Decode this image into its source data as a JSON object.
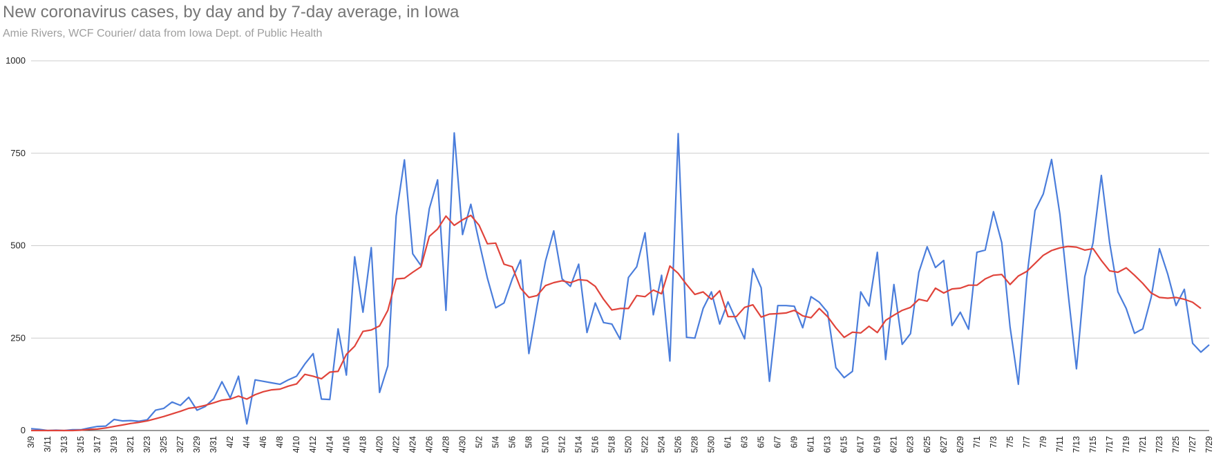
{
  "chart_data": {
    "type": "line",
    "title": "New coronavirus cases, by day and by 7-day average, in Iowa",
    "subtitle": "Amie Rivers, WCF Courier/ data from Iowa Dept. of Public Health",
    "xlabel": "",
    "ylabel": "",
    "ylim": [
      0,
      1000
    ],
    "yticks": [
      0,
      250,
      500,
      750,
      1000
    ],
    "grid": true,
    "legend": "none",
    "x_tick_labels": [
      "3/9",
      "3/11",
      "3/13",
      "3/15",
      "3/17",
      "3/19",
      "3/21",
      "3/23",
      "3/25",
      "3/27",
      "3/29",
      "3/31",
      "4/2",
      "4/4",
      "4/6",
      "4/8",
      "4/10",
      "4/12",
      "4/14",
      "4/16",
      "4/18",
      "4/20",
      "4/22",
      "4/24",
      "4/26",
      "4/28",
      "4/30",
      "5/2",
      "5/4",
      "5/6",
      "5/8",
      "5/10",
      "5/12",
      "5/14",
      "5/16",
      "5/18",
      "5/20",
      "5/22",
      "5/24",
      "5/26",
      "5/28",
      "5/30",
      "6/1",
      "6/3",
      "6/5",
      "6/7",
      "6/9",
      "6/11",
      "6/13",
      "6/15",
      "6/17",
      "6/19",
      "6/21",
      "6/23",
      "6/25",
      "6/27",
      "6/29",
      "7/1",
      "7/3",
      "7/5",
      "7/7",
      "7/9",
      "7/11",
      "7/13",
      "7/15",
      "7/17",
      "7/19",
      "7/21",
      "7/23",
      "7/25",
      "7/27",
      "7/29"
    ],
    "series": [
      {
        "color": "#4a7ddb",
        "values": [
          5,
          3,
          0,
          1,
          0,
          2,
          2,
          7,
          11,
          12,
          30,
          26,
          27,
          25,
          29,
          55,
          60,
          77,
          68,
          90,
          55,
          65,
          86,
          132,
          88,
          147,
          18,
          137,
          133,
          129,
          125,
          137,
          147,
          180,
          208,
          85,
          84,
          275,
          150,
          470,
          320,
          495,
          103,
          175,
          580,
          732,
          478,
          446,
          600,
          678,
          325,
          805,
          530,
          612,
          510,
          412,
          332,
          345,
          410,
          461,
          208,
          338,
          458,
          540,
          410,
          390,
          450,
          265,
          345,
          292,
          288,
          247,
          414,
          443,
          535,
          313,
          420,
          188,
          803,
          252,
          250,
          330,
          375,
          288,
          348,
          298,
          248,
          438,
          386,
          133,
          338,
          338,
          336,
          278,
          362,
          347,
          320,
          170,
          143,
          160,
          375,
          337,
          482,
          192,
          395,
          233,
          262,
          428,
          497,
          441,
          460,
          284,
          320,
          274,
          482,
          488,
          592,
          508,
          280,
          125,
          410,
          595,
          640,
          733,
          585,
          370,
          167,
          416,
          508,
          690,
          508,
          375,
          330,
          263,
          275,
          360,
          492,
          423,
          338,
          382,
          236,
          212,
          232
        ]
      },
      {
        "color": "#e0433a",
        "values": [
          0,
          0,
          0,
          0,
          0,
          0,
          1,
          3,
          4,
          7,
          11,
          15,
          19,
          22,
          26,
          32,
          38,
          45,
          52,
          60,
          63,
          68,
          75,
          82,
          85,
          93,
          85,
          97,
          105,
          110,
          112,
          120,
          126,
          152,
          147,
          140,
          158,
          160,
          206,
          228,
          268,
          272,
          283,
          325,
          410,
          412,
          428,
          443,
          525,
          545,
          580,
          555,
          570,
          582,
          555,
          505,
          507,
          450,
          443,
          385,
          360,
          365,
          392,
          400,
          405,
          400,
          408,
          406,
          390,
          355,
          326,
          330,
          330,
          365,
          362,
          380,
          370,
          445,
          425,
          395,
          368,
          375,
          355,
          378,
          308,
          308,
          333,
          340,
          307,
          315,
          316,
          318,
          325,
          310,
          305,
          330,
          308,
          278,
          252,
          266,
          264,
          282,
          265,
          298,
          312,
          325,
          333,
          355,
          350,
          385,
          372,
          383,
          385,
          393,
          393,
          410,
          420,
          422,
          395,
          418,
          430,
          452,
          474,
          487,
          494,
          498,
          496,
          488,
          492,
          460,
          432,
          428,
          440,
          420,
          398,
          372,
          360,
          358,
          360,
          355,
          347,
          330
        ]
      }
    ]
  }
}
